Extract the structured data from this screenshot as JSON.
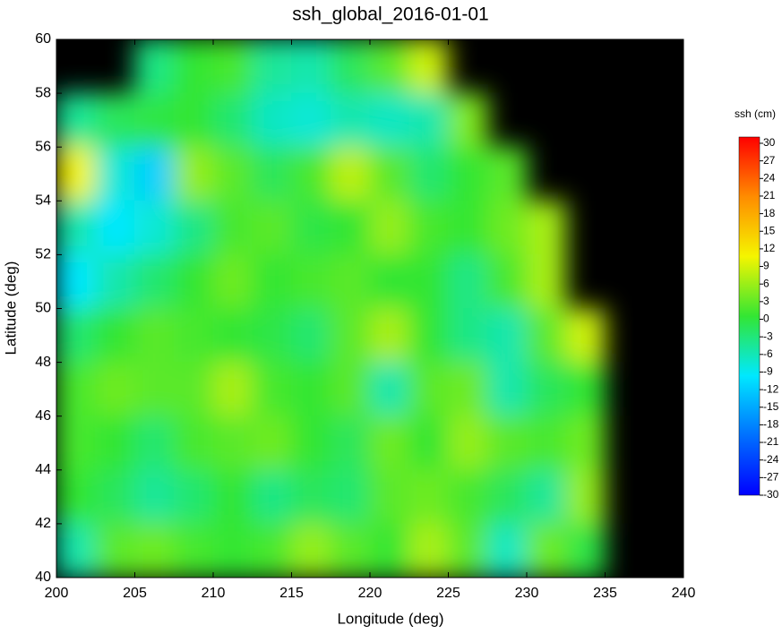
{
  "chart_data": {
    "type": "heatmap",
    "title": "ssh_global_2016-01-01",
    "xlabel": "Longitude (deg)",
    "ylabel": "Latitude (deg)",
    "colorbar_label": "ssh (cm)",
    "xlim": [
      200,
      240
    ],
    "ylim": [
      40,
      60
    ],
    "xticks": [
      200,
      205,
      210,
      215,
      220,
      225,
      230,
      235,
      240
    ],
    "yticks": [
      40,
      42,
      44,
      46,
      48,
      50,
      52,
      54,
      56,
      58,
      60
    ],
    "clim": [
      -30,
      30
    ],
    "cticks": [
      -30,
      -27,
      -24,
      -21,
      -18,
      -15,
      -12,
      -9,
      -6,
      -3,
      0,
      3,
      6,
      9,
      12,
      15,
      18,
      21,
      24,
      27,
      30
    ],
    "colormap": [
      "#0000ff",
      "#0070ff",
      "#00e8ff",
      "#33e633",
      "#f5f500",
      "#ff8c00",
      "#ff0000"
    ],
    "land_color": "#000000",
    "x": [
      201.25,
      203.75,
      206.25,
      208.75,
      211.25,
      213.75,
      216.25,
      218.75,
      221.25,
      223.75,
      226.25,
      228.75,
      231.25,
      233.75,
      236.25,
      238.75
    ],
    "y": [
      59,
      57,
      55,
      53,
      51,
      49,
      47,
      45,
      43,
      41
    ],
    "z": [
      [
        null,
        null,
        -4,
        0,
        1,
        -5,
        -6,
        -2,
        2,
        8,
        null,
        null,
        null,
        null,
        null,
        null
      ],
      [
        -5,
        -2,
        -1,
        0,
        -3,
        -7,
        -8,
        -6,
        -7,
        -6,
        4,
        null,
        null,
        null,
        null,
        null
      ],
      [
        10,
        -8,
        -12,
        5,
        2,
        -2,
        1,
        7,
        2,
        -3,
        0,
        2,
        null,
        null,
        null,
        null
      ],
      [
        -6,
        -10,
        -8,
        -4,
        1,
        2,
        -1,
        0,
        5,
        1,
        0,
        3,
        6,
        null,
        null,
        null
      ],
      [
        -10,
        -6,
        -3,
        0,
        3,
        0,
        1,
        2,
        0,
        0,
        -4,
        1,
        6,
        null,
        null,
        null
      ],
      [
        -3,
        0,
        2,
        1,
        0,
        -1,
        -3,
        2,
        6,
        0,
        -4,
        -6,
        2,
        8,
        null,
        null
      ],
      [
        1,
        3,
        2,
        2,
        6,
        1,
        0,
        2,
        -6,
        2,
        3,
        -6,
        -2,
        0,
        null,
        null
      ],
      [
        1,
        0,
        -3,
        1,
        2,
        3,
        0,
        -2,
        3,
        0,
        5,
        2,
        1,
        3,
        null,
        null
      ],
      [
        0,
        -2,
        -5,
        -3,
        0,
        -4,
        -2,
        -3,
        2,
        3,
        1,
        -2,
        -5,
        5,
        null,
        null
      ],
      [
        -6,
        2,
        3,
        1,
        0,
        1,
        5,
        2,
        0,
        6,
        2,
        -7,
        3,
        -1,
        null,
        null
      ]
    ]
  }
}
